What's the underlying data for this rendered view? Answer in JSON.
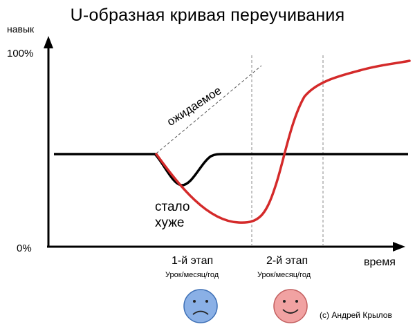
{
  "title": "U-образная кривая переучивания",
  "axes": {
    "y_label": "навык",
    "x_label": "время",
    "y_tick_top": "100%",
    "y_tick_bottom": "0%"
  },
  "annotations": {
    "expected": "ожидаемое",
    "worse_line1": "стало",
    "worse_line2": "хуже"
  },
  "stages": [
    {
      "label": "1-й этап",
      "sublabel": "Урок/месяц/год",
      "face": "sad",
      "face_color": "#8ab0e6"
    },
    {
      "label": "2-й этап",
      "sublabel": "Урок/месяц/год",
      "face": "happy",
      "face_color": "#f1a2a2"
    }
  ],
  "copyright": "(c) Андрей Крылов",
  "colors": {
    "axis": "#000000",
    "baseline": "#000000",
    "relearning_curve": "#d42a2a",
    "expected_line": "#555555",
    "stage_divider": "#888888"
  }
}
